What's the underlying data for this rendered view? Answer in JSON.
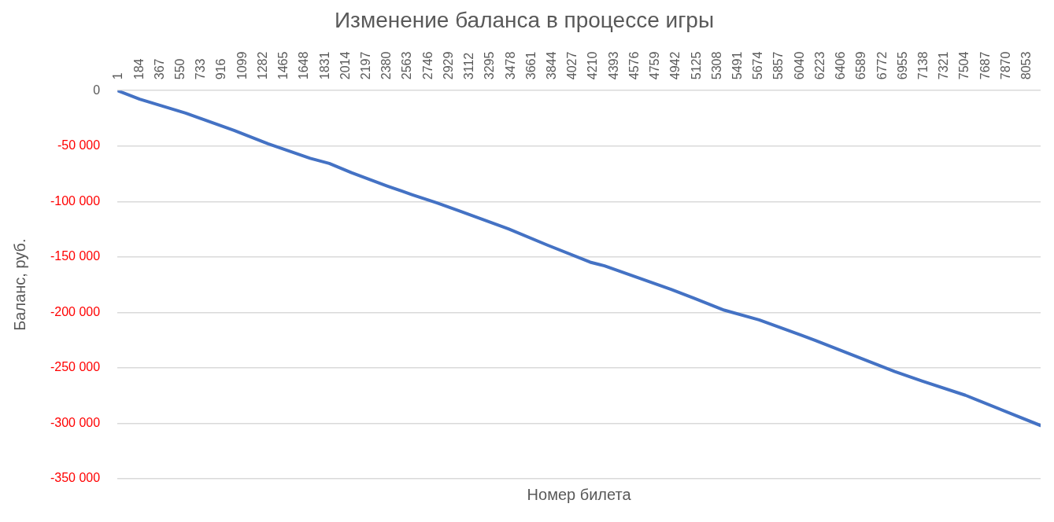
{
  "chart_data": {
    "type": "line",
    "title": "Изменение баланса в процессе игры",
    "xlabel": "Номер билета",
    "ylabel": "Баланс, руб.",
    "x": [
      1,
      198,
      606,
      1035,
      1337,
      1710,
      1879,
      2076,
      2392,
      2617,
      2835,
      3039,
      3468,
      3813,
      4192,
      4319,
      4910,
      5114,
      5381,
      5690,
      6190,
      6893,
      7139,
      7519,
      8186
    ],
    "series": [
      {
        "color": "#4472c4",
        "values": [
          0,
          -7700,
          -20300,
          -36000,
          -48000,
          -61100,
          -65700,
          -74000,
          -86000,
          -94000,
          -101300,
          -108700,
          -124700,
          -139300,
          -154700,
          -158000,
          -179300,
          -187300,
          -198000,
          -206700,
          -225300,
          -253300,
          -262000,
          -274700,
          -302000
        ]
      }
    ],
    "xlim": [
      1,
      8186
    ],
    "xticks": [
      1,
      184,
      367,
      550,
      733,
      916,
      1099,
      1282,
      1465,
      1648,
      1831,
      2014,
      2197,
      2380,
      2563,
      2746,
      2929,
      3112,
      3295,
      3478,
      3661,
      3844,
      4027,
      4210,
      4393,
      4576,
      4759,
      4942,
      5125,
      5308,
      5491,
      5674,
      5857,
      6040,
      6223,
      6406,
      6589,
      6772,
      6955,
      7138,
      7321,
      7504,
      7687,
      7870,
      8053
    ],
    "ylim": [
      -350000,
      0
    ],
    "yticks": [
      {
        "value": -350000,
        "label": "-350 000"
      },
      {
        "value": -300000,
        "label": "-300 000"
      },
      {
        "value": -250000,
        "label": "-250 000"
      },
      {
        "value": -200000,
        "label": "-200 000"
      },
      {
        "value": -150000,
        "label": "-150 000"
      },
      {
        "value": -100000,
        "label": "-100 000"
      },
      {
        "value": -50000,
        "label": "-50 000"
      },
      0
    ],
    "grid": "y",
    "legend": false,
    "marker": "none",
    "line_style": "solid"
  }
}
